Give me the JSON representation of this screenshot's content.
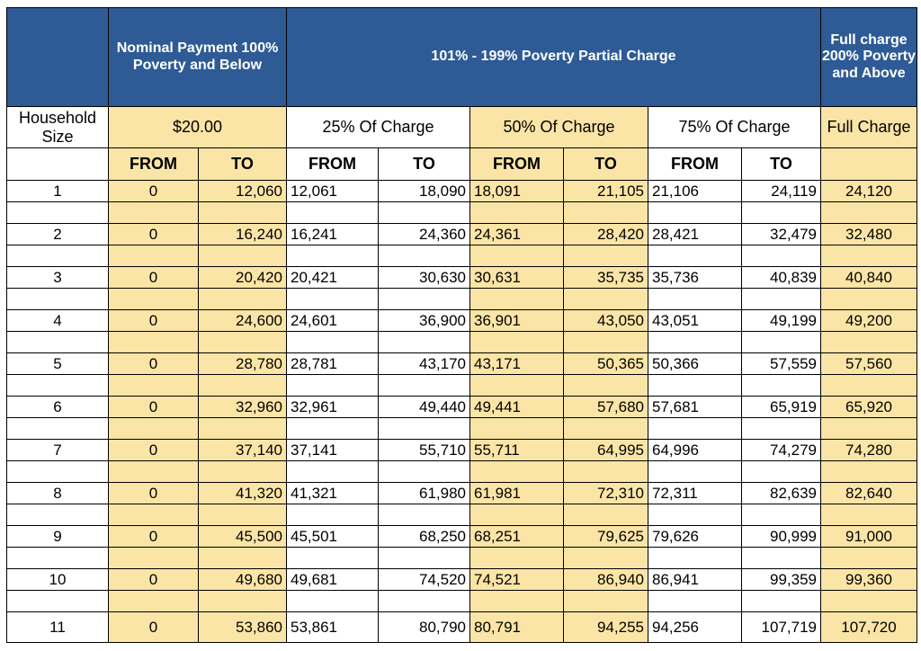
{
  "headers": {
    "nominal": "Nominal Payment 100% Poverty and Below",
    "partial": "101% - 199% Poverty Partial Charge",
    "full": "Full charge 200% Poverty and Above"
  },
  "subheaders": {
    "household": "Household Size",
    "nominal_amount": "$20.00",
    "pct25": "25% Of Charge",
    "pct50": "50% Of Charge",
    "pct75": "75% Of Charge",
    "full": "Full Charge"
  },
  "from_label": "FROM",
  "to_label": "TO",
  "rows": [
    {
      "size": "1",
      "nom_from": "0",
      "nom_to": "12,060",
      "p25_from": "12,061",
      "p25_to": "18,090",
      "p50_from": "18,091",
      "p50_to": "21,105",
      "p75_from": "21,106",
      "p75_to": "24,119",
      "full": "24,120"
    },
    {
      "size": "2",
      "nom_from": "0",
      "nom_to": "16,240",
      "p25_from": "16,241",
      "p25_to": "24,360",
      "p50_from": "24,361",
      "p50_to": "28,420",
      "p75_from": "28,421",
      "p75_to": "32,479",
      "full": "32,480"
    },
    {
      "size": "3",
      "nom_from": "0",
      "nom_to": "20,420",
      "p25_from": "20,421",
      "p25_to": "30,630",
      "p50_from": "30,631",
      "p50_to": "35,735",
      "p75_from": "35,736",
      "p75_to": "40,839",
      "full": "40,840"
    },
    {
      "size": "4",
      "nom_from": "0",
      "nom_to": "24,600",
      "p25_from": "24,601",
      "p25_to": "36,900",
      "p50_from": "36,901",
      "p50_to": "43,050",
      "p75_from": "43,051",
      "p75_to": "49,199",
      "full": "49,200"
    },
    {
      "size": "5",
      "nom_from": "0",
      "nom_to": "28,780",
      "p25_from": "28,781",
      "p25_to": "43,170",
      "p50_from": "43,171",
      "p50_to": "50,365",
      "p75_from": "50,366",
      "p75_to": "57,559",
      "full": "57,560"
    },
    {
      "size": "6",
      "nom_from": "0",
      "nom_to": "32,960",
      "p25_from": "32,961",
      "p25_to": "49,440",
      "p50_from": "49,441",
      "p50_to": "57,680",
      "p75_from": "57,681",
      "p75_to": "65,919",
      "full": "65,920"
    },
    {
      "size": "7",
      "nom_from": "0",
      "nom_to": "37,140",
      "p25_from": "37,141",
      "p25_to": "55,710",
      "p50_from": "55,711",
      "p50_to": "64,995",
      "p75_from": "64,996",
      "p75_to": "74,279",
      "full": "74,280"
    },
    {
      "size": "8",
      "nom_from": "0",
      "nom_to": "41,320",
      "p25_from": "41,321",
      "p25_to": "61,980",
      "p50_from": "61,981",
      "p50_to": "72,310",
      "p75_from": "72,311",
      "p75_to": "82,639",
      "full": "82,640"
    },
    {
      "size": "9",
      "nom_from": "0",
      "nom_to": "45,500",
      "p25_from": "45,501",
      "p25_to": "68,250",
      "p50_from": "68,251",
      "p50_to": "79,625",
      "p75_from": "79,626",
      "p75_to": "90,999",
      "full": "91,000"
    },
    {
      "size": "10",
      "nom_from": "0",
      "nom_to": "49,680",
      "p25_from": "49,681",
      "p25_to": "74,520",
      "p50_from": "74,521",
      "p50_to": "86,940",
      "p75_from": "86,941",
      "p75_to": "99,359",
      "full": "99,360"
    },
    {
      "size": "11",
      "nom_from": "0",
      "nom_to": "53,860",
      "p25_from": "53,861",
      "p25_to": "80,790",
      "p50_from": "80,791",
      "p50_to": "94,255",
      "p75_from": "94,256",
      "p75_to": "107,719",
      "full": "107,720"
    }
  ]
}
